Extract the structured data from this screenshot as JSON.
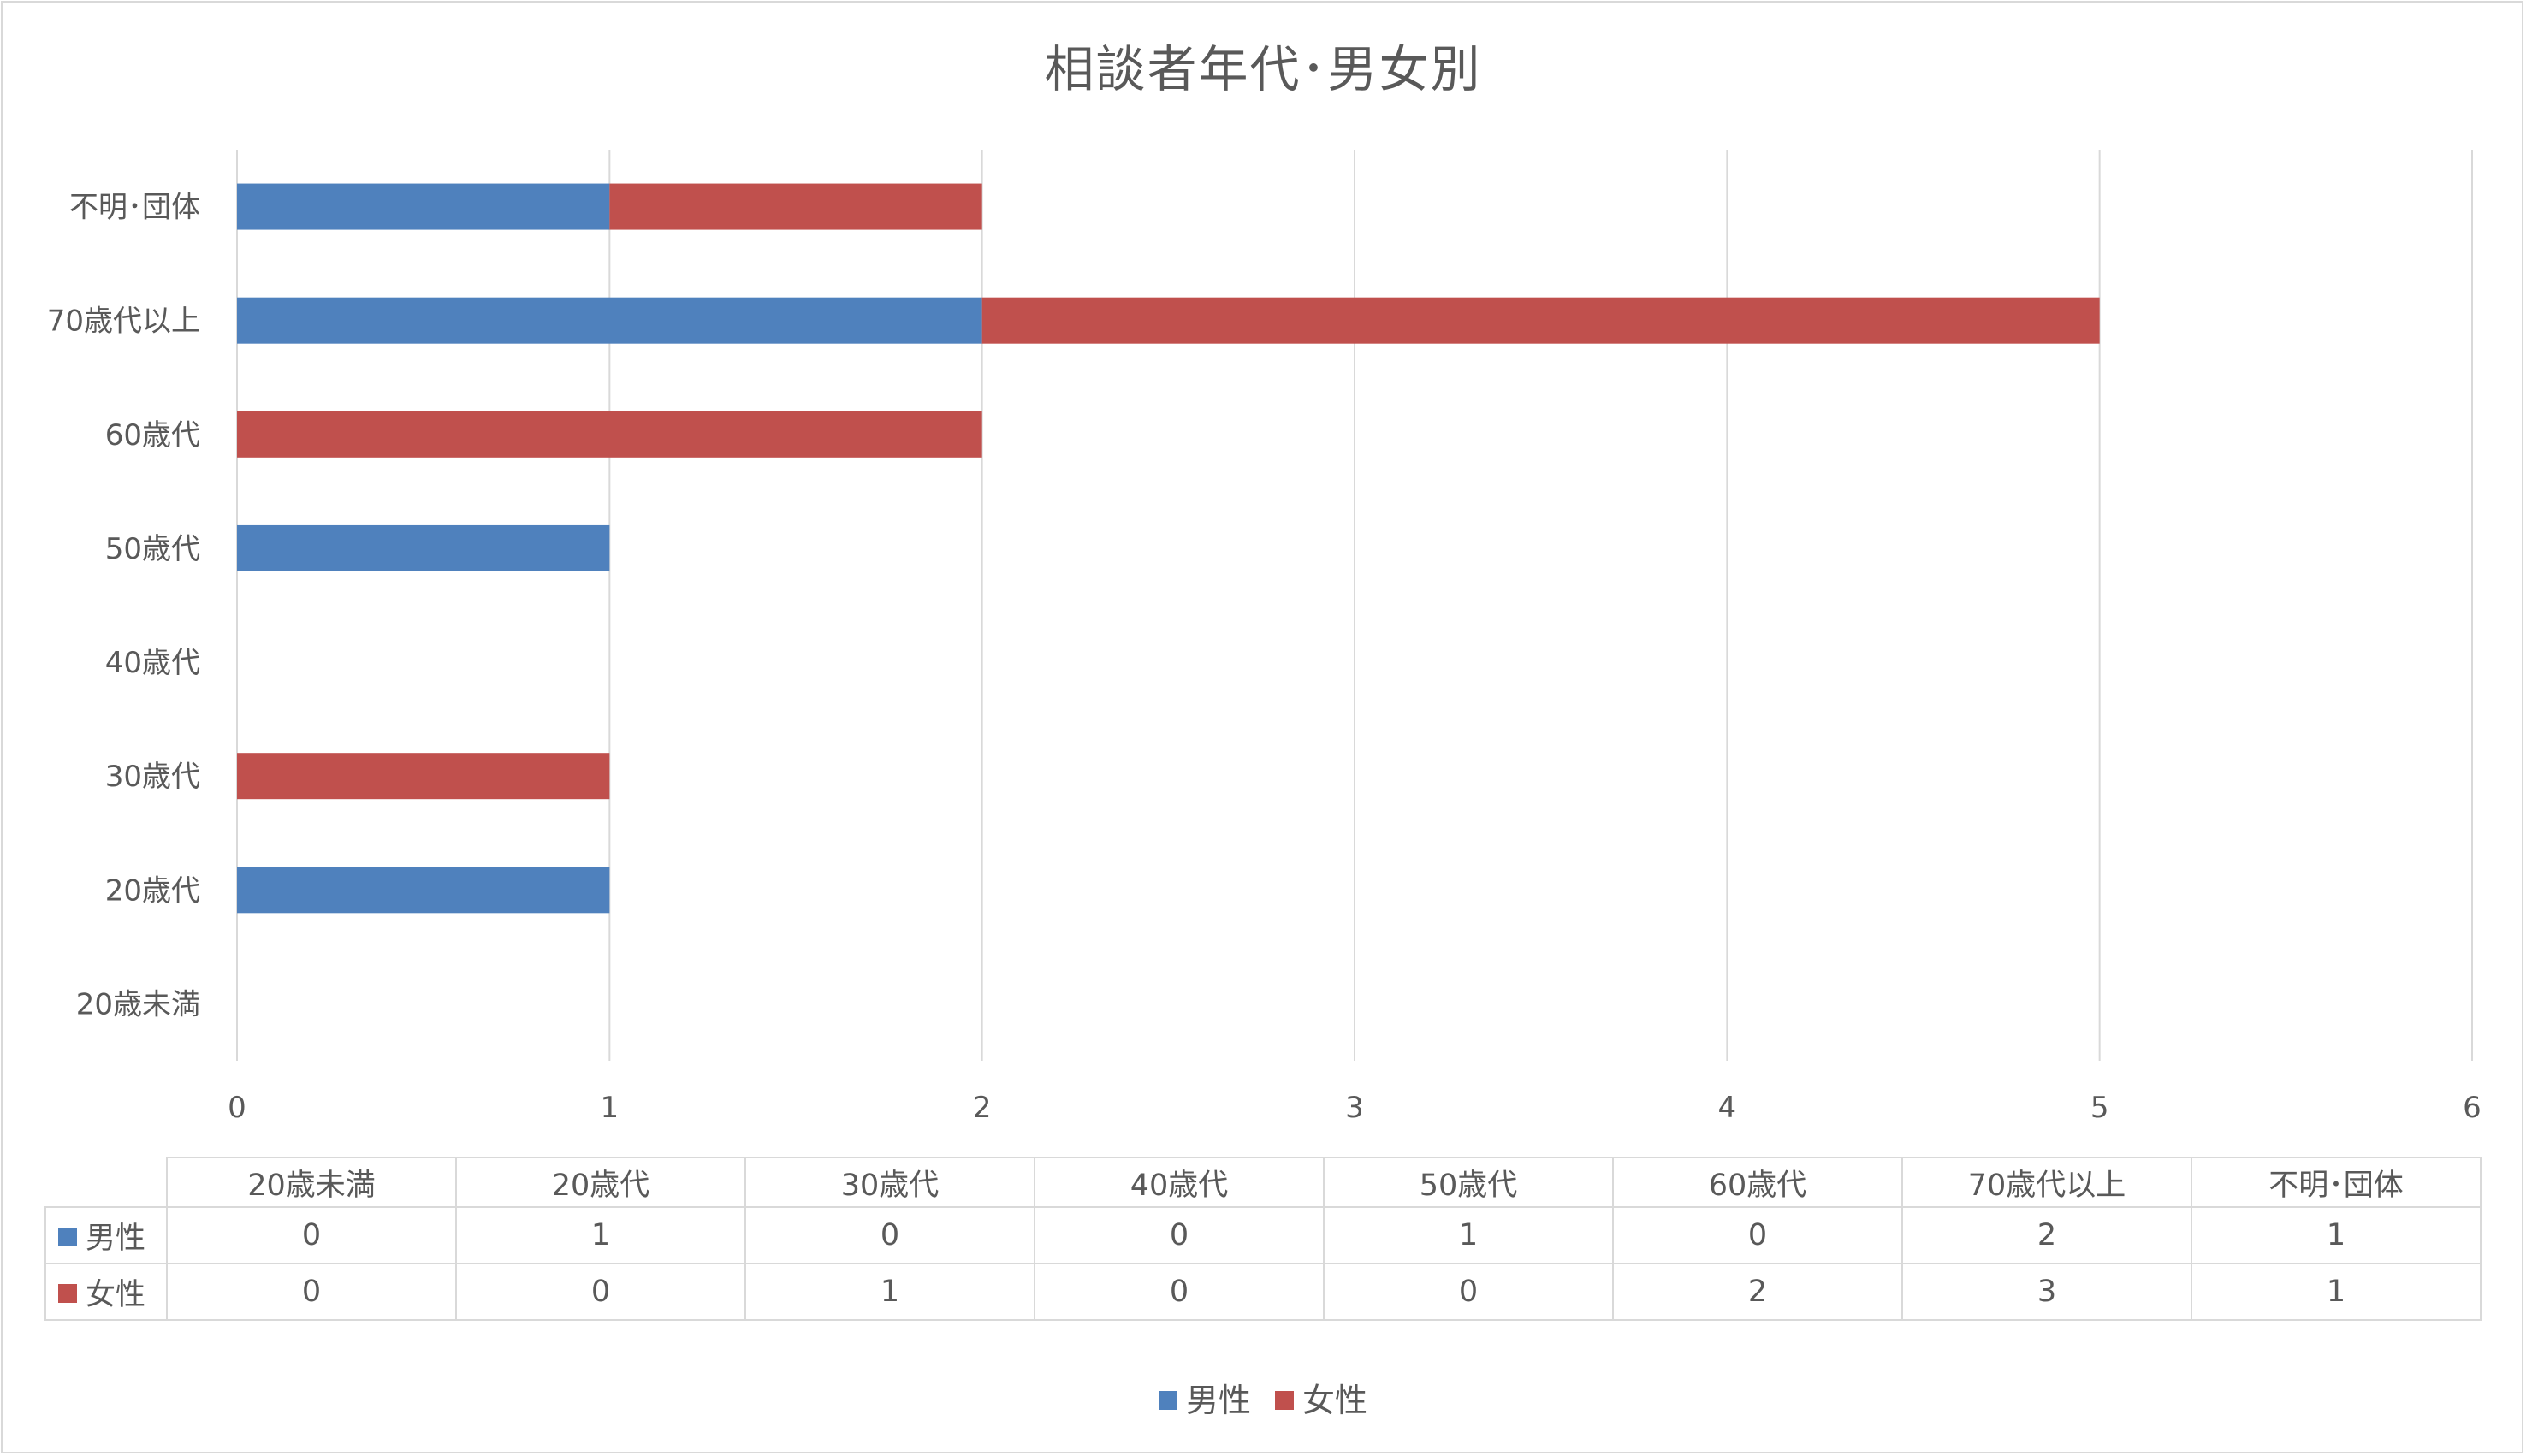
{
  "chart_data": {
    "type": "bar",
    "orientation": "horizontal",
    "stacked": true,
    "title": "相談者年代･男女別",
    "categories": [
      "20歳未満",
      "20歳代",
      "30歳代",
      "40歳代",
      "50歳代",
      "60歳代",
      "70歳代以上",
      "不明･団体"
    ],
    "series": [
      {
        "name": "男性",
        "color": "#4f81bd",
        "values": [
          0,
          1,
          0,
          0,
          1,
          0,
          2,
          1
        ]
      },
      {
        "name": "女性",
        "color": "#c0504d",
        "values": [
          0,
          0,
          1,
          0,
          0,
          2,
          3,
          1
        ]
      }
    ],
    "xlim": [
      0,
      6
    ],
    "xticks": [
      "0",
      "1",
      "2",
      "3",
      "4",
      "5",
      "6"
    ],
    "grid": true,
    "data_table": true,
    "legend": "bottom"
  }
}
